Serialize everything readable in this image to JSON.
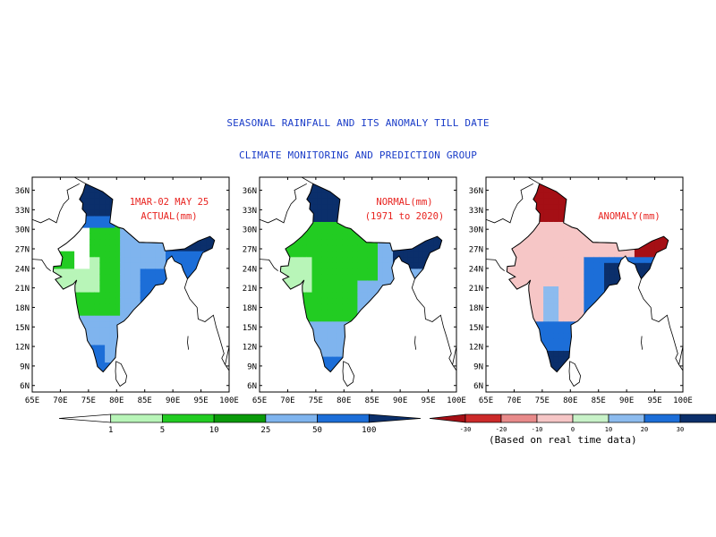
{
  "header": {
    "title": "SEASONAL RAINFALL AND ITS ANOMALY TILL DATE",
    "subtitle": "CLIMATE MONITORING AND PREDICTION GROUP"
  },
  "axes": {
    "lon_ticks": [
      "65E",
      "70E",
      "75E",
      "80E",
      "85E",
      "90E",
      "95E",
      "100E"
    ],
    "lat_ticks": [
      "36N",
      "33N",
      "30N",
      "27N",
      "24N",
      "21N",
      "18N",
      "15N",
      "12N",
      "9N",
      "6N"
    ],
    "lon_range": [
      65,
      100
    ],
    "lat_range": [
      5,
      38
    ]
  },
  "panels": [
    {
      "id": "actual",
      "label_line1": "1MAR-02 MAY 25",
      "label_line2": "ACTUAL(mm)"
    },
    {
      "id": "normal",
      "label_line1": "NORMAL(mm)",
      "label_line2": "(1971 to 2020)"
    },
    {
      "id": "anomaly",
      "label_line1": "ANOMALY(mm)",
      "label_line2": ""
    }
  ],
  "legend_rainfall": {
    "ticks": [
      "1",
      "5",
      "10",
      "25",
      "50",
      "100"
    ],
    "colors": [
      "#ffffff",
      "#b8f5b8",
      "#22cc22",
      "#0a9a0a",
      "#7fb4ee",
      "#1c6ed8",
      "#0b2f6b"
    ]
  },
  "legend_anomaly": {
    "ticks": [
      "-30",
      "-20",
      "-10",
      "0",
      "10",
      "20",
      "30"
    ],
    "colors": [
      "#a50f15",
      "#cc2a2a",
      "#e88a8a",
      "#f6c6c6",
      "#c8f2c8",
      "#8cbbee",
      "#1c6ed8",
      "#0b2f6b"
    ],
    "note": "(Based on real time data)"
  },
  "label_color": "#e8231f",
  "title_color": "#1a3cc8"
}
